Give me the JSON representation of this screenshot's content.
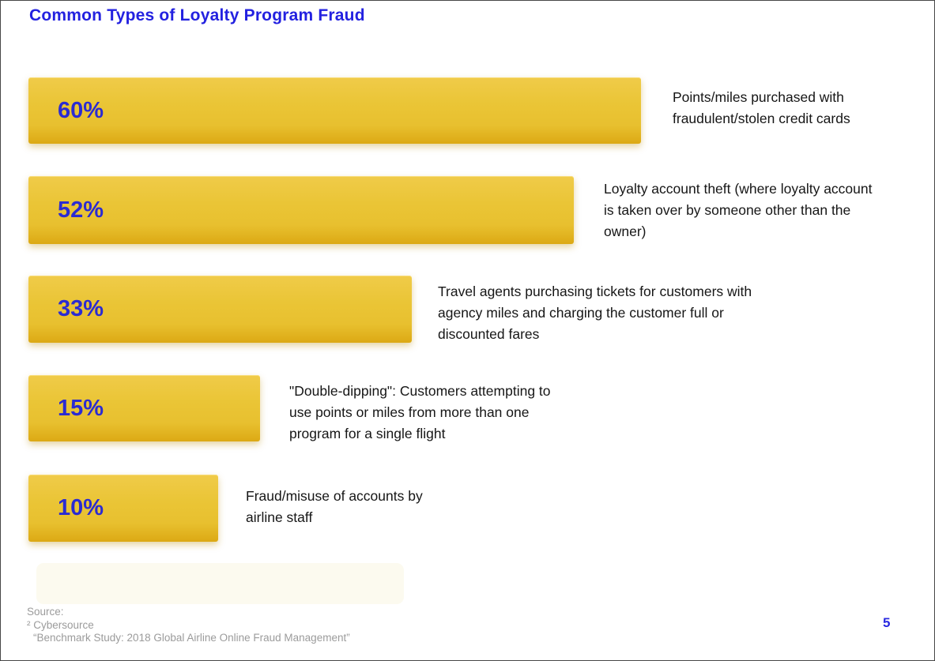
{
  "page": {
    "title": "Common Types of Loyalty Program Fraud",
    "page_number": "5",
    "colors": {
      "title_blue": "#2321E0",
      "bar_yellow": "#E9C233",
      "bar_edge_dark": "#DCA914",
      "percent_blue": "#2B2BD2",
      "description_text": "#161616",
      "source_gray": "#9B9B9B"
    }
  },
  "chart_data": {
    "type": "bar",
    "orientation": "horizontal",
    "title": "Common Types of Loyalty Program Fraud",
    "categories": [
      "Points/miles purchased with fraudulent/stolen credit cards",
      "Loyalty account theft (where loyalty account is taken over by someone other than the owner)",
      "Travel agents purchasing tickets for customers with agency miles and charging the customer full or discounted fares",
      "\"Double-dipping\": Customers attempting to use points or miles from more than one program for a single flight",
      "Fraud/misuse of accounts by airline staff"
    ],
    "values": [
      60,
      52,
      33,
      15,
      10
    ],
    "value_labels": [
      "60%",
      "52%",
      "33%",
      "15%",
      "10%"
    ],
    "bar_color": "#E9C233",
    "value_label_color": "#2B2BD2",
    "legend": false,
    "grid": false,
    "axes_shown": false
  },
  "bars": [
    {
      "value": "60%",
      "label": "Points/miles purchased with fraudulent/stolen credit cards"
    },
    {
      "value": "52%",
      "label": "Loyalty account theft (where loyalty account is taken over by someone other than the owner)"
    },
    {
      "value": "33%",
      "label": "Travel agents purchasing tickets for customers with agency miles and charging the customer full or discounted fares"
    },
    {
      "value": "15%",
      "label": "\"Double-dipping\": Customers attempting to use points or miles from more than one program for a single flight"
    },
    {
      "value": "10%",
      "label": "Fraud/misuse of accounts by airline staff"
    }
  ],
  "source": {
    "label": "Source:",
    "attribution": "² Cybersource",
    "study": "“Benchmark Study: 2018 Global Airline Online Fraud Management”"
  }
}
